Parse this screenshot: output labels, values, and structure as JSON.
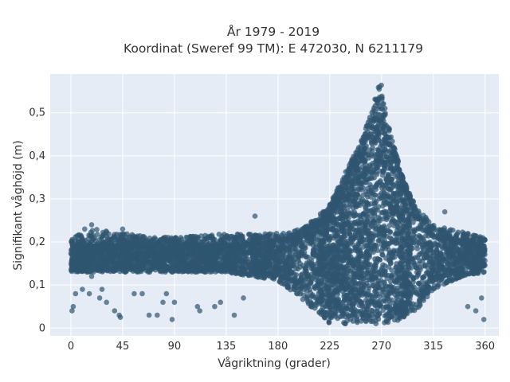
{
  "chart_data": {
    "type": "scatter",
    "title_line1": "År 1979 - 2019",
    "title_line2": "Koordinat (Sweref 99 TM): E 472030, N 6211179",
    "xlabel": "Vågriktning (grader)",
    "ylabel": "Signifikant våghöjd (m)",
    "xlim": [
      -18,
      372
    ],
    "ylim": [
      -0.018,
      0.59
    ],
    "xticks": [
      0,
      45,
      90,
      135,
      180,
      225,
      270,
      315,
      360
    ],
    "xtick_labels": [
      "0",
      "45",
      "90",
      "135",
      "180",
      "225",
      "270",
      "315",
      "360"
    ],
    "yticks": [
      0,
      0.1,
      0.2,
      0.3,
      0.4,
      0.5
    ],
    "ytick_labels": [
      "0",
      "0,1",
      "0,2",
      "0,3",
      "0,4",
      "0,5"
    ],
    "grid": true,
    "legend": "none",
    "marker_color": "#2f5670",
    "background_color": "#e5ecf6",
    "series": [
      {
        "upper_envelope": {
          "x": [
            0,
            20,
            45,
            90,
            135,
            160,
            180,
            200,
            215,
            225,
            235,
            245,
            255,
            260,
            265,
            270,
            275,
            280,
            290,
            300,
            315,
            330,
            345,
            360
          ],
          "y": [
            0.21,
            0.23,
            0.22,
            0.21,
            0.22,
            0.22,
            0.22,
            0.23,
            0.26,
            0.29,
            0.34,
            0.4,
            0.45,
            0.5,
            0.55,
            0.57,
            0.5,
            0.43,
            0.34,
            0.28,
            0.24,
            0.23,
            0.22,
            0.21
          ]
        },
        "core_band": {
          "x": [
            0,
            45,
            90,
            135,
            180,
            200,
            225,
            245,
            260,
            270,
            280,
            300,
            315,
            340,
            360
          ],
          "low": [
            0.13,
            0.13,
            0.13,
            0.13,
            0.11,
            0.07,
            0.01,
            0.01,
            0.01,
            0.01,
            0.01,
            0.04,
            0.09,
            0.12,
            0.13
          ],
          "high": [
            0.19,
            0.19,
            0.19,
            0.19,
            0.2,
            0.21,
            0.26,
            0.35,
            0.44,
            0.47,
            0.4,
            0.26,
            0.21,
            0.2,
            0.19
          ]
        },
        "outliers": [
          {
            "x": 1,
            "y": 0.04
          },
          {
            "x": 2,
            "y": 0.05
          },
          {
            "x": 4,
            "y": 0.08
          },
          {
            "x": 10,
            "y": 0.09
          },
          {
            "x": 16,
            "y": 0.08
          },
          {
            "x": 18,
            "y": 0.12
          },
          {
            "x": 25,
            "y": 0.07
          },
          {
            "x": 27,
            "y": 0.09
          },
          {
            "x": 31,
            "y": 0.06
          },
          {
            "x": 38,
            "y": 0.04
          },
          {
            "x": 42,
            "y": 0.03
          },
          {
            "x": 43,
            "y": 0.025
          },
          {
            "x": 55,
            "y": 0.08
          },
          {
            "x": 62,
            "y": 0.08
          },
          {
            "x": 68,
            "y": 0.03
          },
          {
            "x": 75,
            "y": 0.03
          },
          {
            "x": 80,
            "y": 0.06
          },
          {
            "x": 83,
            "y": 0.08
          },
          {
            "x": 88,
            "y": 0.02
          },
          {
            "x": 90,
            "y": 0.06
          },
          {
            "x": 110,
            "y": 0.05
          },
          {
            "x": 112,
            "y": 0.04
          },
          {
            "x": 125,
            "y": 0.05
          },
          {
            "x": 130,
            "y": 0.06
          },
          {
            "x": 142,
            "y": 0.03
          },
          {
            "x": 150,
            "y": 0.07
          },
          {
            "x": 160,
            "y": 0.26
          },
          {
            "x": 345,
            "y": 0.05
          },
          {
            "x": 352,
            "y": 0.04
          },
          {
            "x": 357,
            "y": 0.07
          },
          {
            "x": 359,
            "y": 0.02
          },
          {
            "x": 325,
            "y": 0.27
          },
          {
            "x": 18,
            "y": 0.24
          },
          {
            "x": 12,
            "y": 0.23
          },
          {
            "x": 45,
            "y": 0.23
          }
        ]
      }
    ]
  }
}
